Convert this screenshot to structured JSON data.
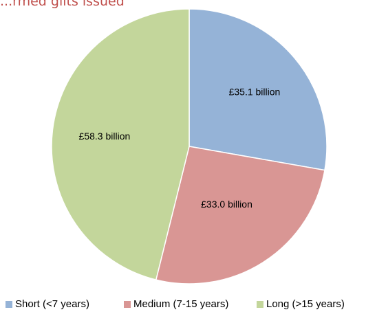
{
  "chart_data": {
    "type": "pie",
    "title": "...rmed gilts issued",
    "slices": [
      {
        "label": "Short (<7 years)",
        "value": 35.1,
        "data_label": "£35.1 billion",
        "color": "#95b3d7"
      },
      {
        "label": "Medium (7-15 years)",
        "value": 33.0,
        "data_label": "£33.0 billion",
        "color": "#d99694"
      },
      {
        "label": "Long (>15 years)",
        "value": 58.3,
        "data_label": "£58.3 billion",
        "color": "#c3d69b"
      }
    ],
    "start_angle_deg": 0,
    "direction": "clockwise",
    "legend_placement": "bottom"
  }
}
